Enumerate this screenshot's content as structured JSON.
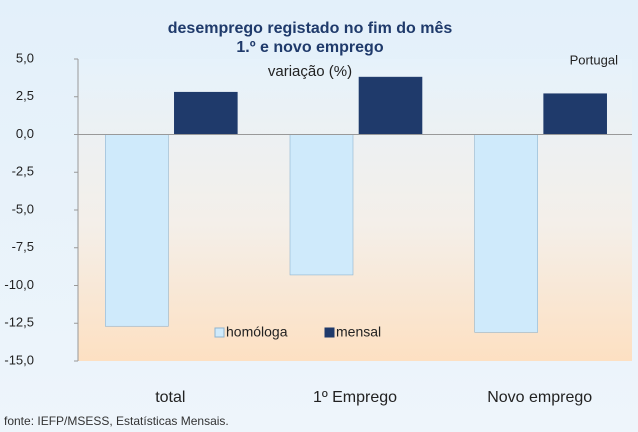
{
  "chart_data": {
    "type": "bar",
    "title": "desemprego registado no fim do mês",
    "subtitle": "1.º e novo emprego",
    "y_label": "variação (%)",
    "annotation": "Portugal",
    "source": "fonte: IEFP/MSESS, Estatísticas Mensais.",
    "categories": [
      "total",
      "1º Emprego",
      "Novo emprego"
    ],
    "series": [
      {
        "name": "homóloga",
        "color": "#cfeafb",
        "values": [
          -12.7,
          -9.3,
          -13.1
        ]
      },
      {
        "name": "mensal",
        "color": "#1f3a6b",
        "values": [
          2.8,
          3.8,
          2.7
        ]
      }
    ],
    "ylim": [
      -15,
      5
    ],
    "yticks": [
      {
        "value": 5,
        "label": "5,0"
      },
      {
        "value": 2.5,
        "label": "2,5"
      },
      {
        "value": 0,
        "label": "0,0"
      },
      {
        "value": -2.5,
        "label": "-2,5"
      },
      {
        "value": -5,
        "label": "-5,0"
      },
      {
        "value": -7.5,
        "label": "-7,5"
      },
      {
        "value": -10,
        "label": "-10,0"
      },
      {
        "value": -12.5,
        "label": "-12,5"
      },
      {
        "value": -15,
        "label": "-15,0"
      }
    ],
    "grid": false,
    "legend": "bottom"
  }
}
